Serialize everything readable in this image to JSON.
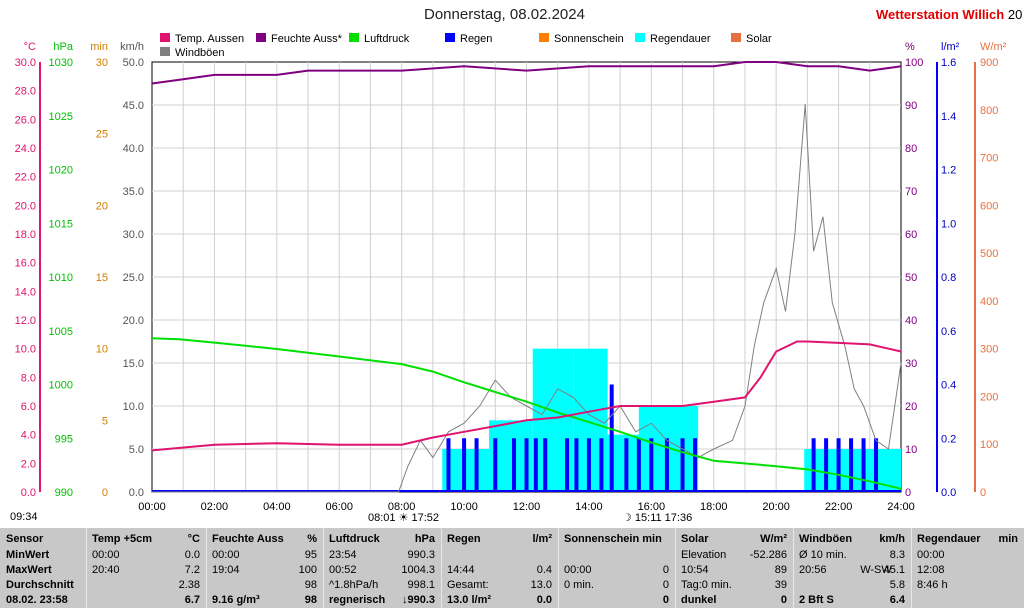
{
  "header": {
    "title": "Donnerstag, 08.02.2024",
    "brand": "Wetterstation Willich",
    "brand_suffix": "20"
  },
  "legend": [
    {
      "label": "Temp. Aussen",
      "color": "#e0146e"
    },
    {
      "label": "Feuchte Auss*",
      "color": "#800080"
    },
    {
      "label": "Luftdruck",
      "color": "#00e000"
    },
    {
      "label": "Regen",
      "color": "#0000ff"
    },
    {
      "label": "Sonnenschein",
      "color": "#ff8000"
    },
    {
      "label": "Regendauer",
      "color": "#00ffff"
    },
    {
      "label": "Solar",
      "color": "#e87040"
    },
    {
      "label": "Windböen",
      "color": "#808080"
    }
  ],
  "axes": {
    "temp": {
      "unit": "°C",
      "ticks": [
        "30.0",
        "28.0",
        "26.0",
        "24.0",
        "22.0",
        "20.0",
        "18.0",
        "16.0",
        "14.0",
        "12.0",
        "10.0",
        "8.0",
        "6.0",
        "4.0",
        "2.0",
        "0.0"
      ],
      "color": "#e0146e"
    },
    "pressure": {
      "unit": "hPa",
      "ticks": [
        "1030",
        "1025",
        "1020",
        "1015",
        "1010",
        "1005",
        "1000",
        "995",
        "990"
      ],
      "color": "#00c000"
    },
    "minutes": {
      "unit": "min",
      "ticks": [
        "30",
        "25",
        "20",
        "15",
        "10",
        "5",
        "0"
      ],
      "color": "#d08000"
    },
    "wind": {
      "unit": "km/h",
      "ticks": [
        "50.0",
        "45.0",
        "40.0",
        "35.0",
        "30.0",
        "25.0",
        "20.0",
        "15.0",
        "10.0",
        "5.0",
        "0.0"
      ],
      "color": "#555555"
    },
    "humidity": {
      "unit": "%",
      "ticks": [
        "100",
        "90",
        "80",
        "70",
        "60",
        "50",
        "40",
        "30",
        "20",
        "10",
        "0"
      ],
      "color": "#800080"
    },
    "rain": {
      "unit": "l/m²",
      "ticks": [
        "1.6",
        "1.4",
        "1.2",
        "1.0",
        "0.8",
        "0.6",
        "0.4",
        "0.2",
        "0.0"
      ],
      "color": "#0000c0"
    },
    "solar": {
      "unit": "W/m²",
      "ticks": [
        "900",
        "800",
        "700",
        "600",
        "500",
        "400",
        "300",
        "200",
        "100",
        "0"
      ],
      "color": "#e87040"
    },
    "time": [
      "00:00",
      "02:00",
      "04:00",
      "06:00",
      "08:00",
      "10:00",
      "12:00",
      "14:00",
      "16:00",
      "18:00",
      "20:00",
      "22:00",
      "24:00"
    ]
  },
  "markers": {
    "sun": "08:01 ☀ 17:52",
    "moon": "☽ 15:11   17:36",
    "clock": "09:34"
  },
  "chart_data": {
    "type": "line",
    "title": "Donnerstag, 08.02.2024",
    "x_range": [
      0,
      24
    ],
    "series": [
      {
        "name": "Temp. Aussen",
        "axis": "temp",
        "points": [
          [
            0,
            2.9
          ],
          [
            2,
            3.3
          ],
          [
            4,
            3.4
          ],
          [
            6,
            3.3
          ],
          [
            8,
            3.3
          ],
          [
            9,
            3.8
          ],
          [
            10,
            4.2
          ],
          [
            11,
            4.6
          ],
          [
            12,
            5.0
          ],
          [
            13,
            5.2
          ],
          [
            14,
            5.6
          ],
          [
            15,
            6.0
          ],
          [
            16,
            6.0
          ],
          [
            17,
            6.0
          ],
          [
            18,
            6.3
          ],
          [
            19,
            6.6
          ],
          [
            19.5,
            8.0
          ],
          [
            20,
            9.8
          ],
          [
            20.67,
            10.5
          ],
          [
            21,
            10.5
          ],
          [
            22,
            10.4
          ],
          [
            23,
            10.3
          ],
          [
            24,
            9.8
          ]
        ]
      },
      {
        "name": "Feuchte Auss*",
        "axis": "humidity",
        "points": [
          [
            0,
            95
          ],
          [
            1,
            96
          ],
          [
            2,
            97
          ],
          [
            4,
            97
          ],
          [
            5,
            98
          ],
          [
            8,
            98
          ],
          [
            10,
            99
          ],
          [
            12,
            98
          ],
          [
            14,
            99
          ],
          [
            16,
            99
          ],
          [
            18,
            99
          ],
          [
            19,
            100
          ],
          [
            20,
            100
          ],
          [
            21,
            99
          ],
          [
            22,
            99
          ],
          [
            23,
            98
          ],
          [
            24,
            99
          ]
        ]
      },
      {
        "name": "Luftdruck",
        "axis": "pressure",
        "points": [
          [
            0,
            1004.3
          ],
          [
            0.87,
            1004.2
          ],
          [
            2,
            1003.9
          ],
          [
            3,
            1003.6
          ],
          [
            4,
            1003.3
          ],
          [
            6,
            1002.6
          ],
          [
            8,
            1001.9
          ],
          [
            9,
            1001.2
          ],
          [
            10,
            1000.2
          ],
          [
            11,
            999.3
          ],
          [
            12,
            998.4
          ],
          [
            13,
            997.4
          ],
          [
            14,
            996.5
          ],
          [
            15,
            995.6
          ],
          [
            16,
            994.6
          ],
          [
            17,
            993.7
          ],
          [
            18,
            992.9
          ],
          [
            20,
            992.4
          ],
          [
            21,
            992.1
          ],
          [
            22,
            991.6
          ],
          [
            23,
            991.0
          ],
          [
            24,
            990.3
          ]
        ]
      },
      {
        "name": "Windböen",
        "axis": "wind",
        "points": [
          [
            0,
            0
          ],
          [
            7.9,
            0
          ],
          [
            8.2,
            3
          ],
          [
            8.6,
            6
          ],
          [
            9,
            4
          ],
          [
            9.5,
            7
          ],
          [
            10,
            8
          ],
          [
            10.5,
            10
          ],
          [
            11,
            13
          ],
          [
            11.5,
            11
          ],
          [
            12,
            10
          ],
          [
            12.5,
            9
          ],
          [
            13,
            12
          ],
          [
            13.5,
            11
          ],
          [
            14,
            9
          ],
          [
            14.5,
            8
          ],
          [
            15,
            10
          ],
          [
            15.5,
            7
          ],
          [
            16,
            8
          ],
          [
            16.5,
            6
          ],
          [
            17,
            5
          ],
          [
            17.5,
            4
          ],
          [
            18,
            5
          ],
          [
            18.6,
            6
          ],
          [
            19,
            10
          ],
          [
            19.3,
            17
          ],
          [
            19.6,
            22
          ],
          [
            20,
            26
          ],
          [
            20.3,
            21
          ],
          [
            20.6,
            30
          ],
          [
            20.93,
            45.1
          ],
          [
            21.2,
            28
          ],
          [
            21.5,
            32
          ],
          [
            21.8,
            22
          ],
          [
            22.2,
            17
          ],
          [
            22.5,
            12
          ],
          [
            22.8,
            10
          ],
          [
            23.2,
            6
          ],
          [
            23.6,
            5
          ],
          [
            24,
            15
          ]
        ]
      },
      {
        "name": "Regen",
        "axis": "rain",
        "bars": [
          [
            9.5,
            0.2
          ],
          [
            10.0,
            0.2
          ],
          [
            10.4,
            0.2
          ],
          [
            11.0,
            0.2
          ],
          [
            11.6,
            0.2
          ],
          [
            12.0,
            0.2
          ],
          [
            12.3,
            0.2
          ],
          [
            12.6,
            0.2
          ],
          [
            13.3,
            0.2
          ],
          [
            13.6,
            0.2
          ],
          [
            14.0,
            0.2
          ],
          [
            14.4,
            0.2
          ],
          [
            14.73,
            0.4
          ],
          [
            15.2,
            0.2
          ],
          [
            15.6,
            0.2
          ],
          [
            16.0,
            0.2
          ],
          [
            16.5,
            0.2
          ],
          [
            17.0,
            0.2
          ],
          [
            17.4,
            0.2
          ],
          [
            21.2,
            0.2
          ],
          [
            21.6,
            0.2
          ],
          [
            22.0,
            0.2
          ],
          [
            22.4,
            0.2
          ],
          [
            22.8,
            0.2
          ],
          [
            23.2,
            0.2
          ]
        ]
      },
      {
        "name": "Regendauer",
        "axis": "minutes",
        "bars": [
          [
            9.3,
            10.8,
            3
          ],
          [
            10.8,
            12.2,
            5
          ],
          [
            12.2,
            13.5,
            10
          ],
          [
            13.5,
            14.6,
            10
          ],
          [
            14.6,
            15.6,
            4
          ],
          [
            15.6,
            17.5,
            6
          ],
          [
            20.9,
            24,
            3
          ]
        ]
      }
    ],
    "temp_range": [
      0,
      30
    ],
    "pressure_range": [
      990,
      1030
    ],
    "wind_range": [
      0,
      50
    ],
    "humidity_range": [
      0,
      100
    ],
    "rain_range": [
      0,
      1.6
    ]
  },
  "table": {
    "columns": [
      {
        "title": "Sensor",
        "unit": "",
        "rows": [
          [
            "MinWert",
            "",
            ""
          ],
          [
            "MaxWert",
            "",
            ""
          ],
          [
            "Durchschnitt",
            "",
            ""
          ],
          [
            "08.02. 23:58",
            "",
            ""
          ]
        ]
      },
      {
        "title": "Temp +5cm",
        "unit": "°C",
        "rows": [
          [
            "00:00",
            "",
            "0.0"
          ],
          [
            "20:40",
            "",
            "7.2"
          ],
          [
            "",
            "",
            "2.38"
          ],
          [
            "",
            "",
            "6.7"
          ]
        ]
      },
      {
        "title": "Feuchte Auss",
        "unit": "%",
        "rows": [
          [
            "00:00",
            "",
            "95"
          ],
          [
            "19:04",
            "",
            "100"
          ],
          [
            "",
            "",
            "98"
          ],
          [
            "9.16 g/m³",
            "",
            "98"
          ]
        ]
      },
      {
        "title": "Luftdruck",
        "unit": "hPa",
        "rows": [
          [
            "23:54",
            "",
            "990.3"
          ],
          [
            "00:52",
            "",
            "1004.3"
          ],
          [
            "^1.8hPa/h",
            "",
            "998.1"
          ],
          [
            "regnerisch",
            "",
            "↓990.3"
          ]
        ]
      },
      {
        "title": "Regen",
        "unit": "l/m²",
        "rows": [
          [
            "",
            "",
            ""
          ],
          [
            "14:44",
            "",
            "0.4"
          ],
          [
            "Gesamt:",
            "",
            "13.0"
          ],
          [
            "13.0 l/m²",
            "",
            "0.0"
          ]
        ]
      },
      {
        "title": "Sonnenschein min",
        "unit": "",
        "rows": [
          [
            "",
            "",
            ""
          ],
          [
            "00:00",
            "",
            "0"
          ],
          [
            "0 min.",
            "",
            "0"
          ],
          [
            "",
            "",
            "0"
          ]
        ]
      },
      {
        "title": "Solar",
        "unit": "W/m²",
        "rows": [
          [
            "Elevation",
            "",
            "-52.286"
          ],
          [
            "10:54",
            "",
            "89"
          ],
          [
            "Tag:0 min.",
            "",
            "39"
          ],
          [
            "dunkel",
            "",
            "0"
          ]
        ]
      },
      {
        "title": "Windböen",
        "unit": "km/h",
        "rows": [
          [
            "Ø 10 min.",
            "",
            "8.3"
          ],
          [
            "20:56",
            "W-SW",
            "45.1"
          ],
          [
            "",
            "",
            "5.8"
          ],
          [
            "2 Bft S",
            "",
            "6.4"
          ]
        ]
      },
      {
        "title": "Regendauer",
        "unit": "min",
        "rows": [
          [
            "00:00",
            "",
            ""
          ],
          [
            "12:08",
            "",
            ""
          ],
          [
            "8:46 h",
            "",
            ""
          ],
          [
            "",
            "",
            ""
          ]
        ]
      }
    ]
  }
}
